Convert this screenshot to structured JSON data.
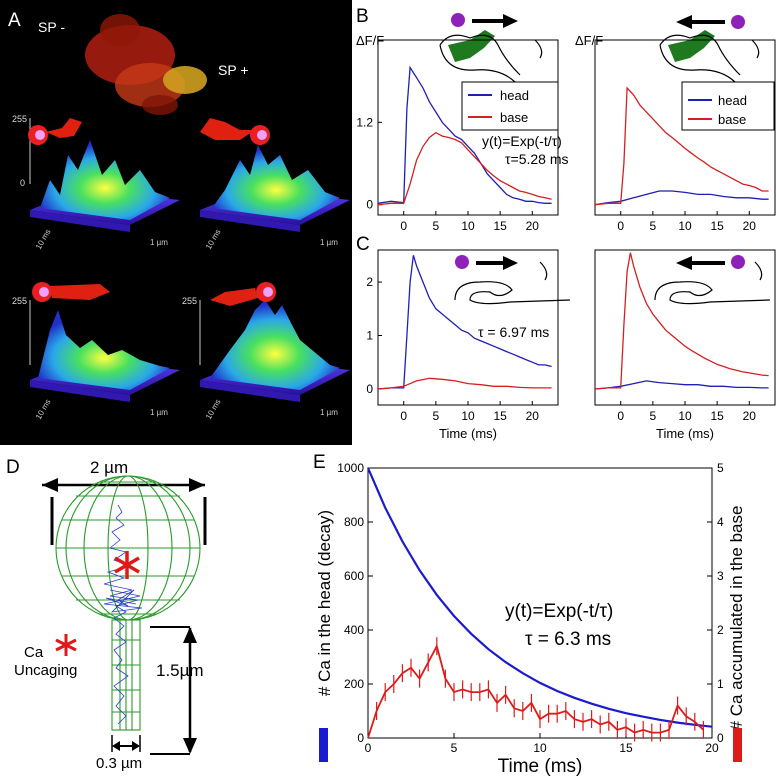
{
  "panels": {
    "A": {
      "label": "A",
      "image_caption_left": "SP -",
      "image_caption_right": "SP +",
      "z_tick_max": "255",
      "z_tick_min": "0",
      "scale_time": "10 ms",
      "scale_space": "1 µm"
    },
    "B": {
      "label": "B",
      "ylabel": "ΔF/F",
      "ylabel_right": "ΔF/F",
      "legend_head": "head",
      "legend_base": "base",
      "fit_equation": "y(t)=Exp(-t/τ)",
      "fit_tau": "τ=5.28 ms",
      "y_ticks": [
        "0",
        "1.2"
      ],
      "x_ticks": [
        "0",
        "5",
        "10",
        "15",
        "20"
      ]
    },
    "C": {
      "label": "C",
      "fit_tau": "τ = 6.97 ms",
      "y_ticks": [
        "0",
        "1",
        "2"
      ],
      "x_ticks": [
        "0",
        "5",
        "10",
        "15",
        "20"
      ],
      "xlabel_left": "Time (ms)",
      "xlabel_right": "Time (ms)"
    },
    "D": {
      "label": "D",
      "head_width": "2 µm",
      "neck_length": "1.5µm",
      "neck_width": "0.3 µm",
      "uncaging_label_1": "Ca",
      "uncaging_label_2": "Uncaging"
    },
    "E": {
      "label": "E",
      "equation": "y(t)=Exp(-t/τ)",
      "tau": "τ = 6.3 ms"
    }
  },
  "chart_data": [
    {
      "id": "B-left",
      "type": "line",
      "xlabel": "",
      "ylabel": "ΔF/F",
      "xlim": [
        -4,
        24
      ],
      "ylim": [
        -0.15,
        2.4
      ],
      "series": [
        {
          "name": "head",
          "color": "#1f1fb4",
          "x": [
            -4,
            -2,
            0,
            0.5,
            1,
            2,
            3,
            4,
            5,
            6,
            7,
            8,
            9,
            10,
            11,
            12,
            13,
            14,
            15,
            16,
            17,
            18,
            19,
            20,
            21,
            22,
            23
          ],
          "y": [
            0.02,
            0.05,
            0.03,
            1.4,
            2.0,
            1.85,
            1.7,
            1.5,
            1.35,
            1.2,
            1.1,
            1.0,
            0.95,
            0.85,
            0.75,
            0.6,
            0.45,
            0.35,
            0.25,
            0.15,
            0.1,
            0.08,
            0.05,
            0.05,
            0.03,
            0.02,
            0.02
          ]
        },
        {
          "name": "base",
          "color": "#d42020",
          "x": [
            -4,
            -2,
            0,
            1,
            2,
            3,
            4,
            5,
            6,
            7,
            8,
            9,
            10,
            11,
            12,
            13,
            14,
            15,
            16,
            17,
            18,
            19,
            20,
            21,
            22,
            23
          ],
          "y": [
            0.0,
            0.02,
            0.02,
            0.3,
            0.65,
            0.85,
            0.98,
            1.05,
            1.0,
            0.98,
            0.95,
            0.9,
            0.8,
            0.7,
            0.6,
            0.5,
            0.42,
            0.35,
            0.3,
            0.25,
            0.2,
            0.18,
            0.15,
            0.12,
            0.1,
            0.08
          ]
        }
      ]
    },
    {
      "id": "B-right",
      "type": "line",
      "xlabel": "",
      "ylabel": "ΔF/F",
      "xlim": [
        -4,
        24
      ],
      "ylim": [
        -0.15,
        2.4
      ],
      "series": [
        {
          "name": "head",
          "color": "#1f1fb4",
          "x": [
            -4,
            -2,
            0,
            2,
            4,
            6,
            8,
            10,
            12,
            14,
            16,
            18,
            20,
            22,
            23
          ],
          "y": [
            0.0,
            0.03,
            0.05,
            0.1,
            0.15,
            0.2,
            0.2,
            0.18,
            0.15,
            0.15,
            0.12,
            0.1,
            0.1,
            0.08,
            0.08
          ]
        },
        {
          "name": "base",
          "color": "#d42020",
          "x": [
            -4,
            -2,
            0,
            0.5,
            1,
            2,
            3,
            4,
            5,
            6,
            7,
            8,
            9,
            10,
            11,
            12,
            13,
            14,
            15,
            16,
            17,
            18,
            19,
            20,
            21,
            22,
            23
          ],
          "y": [
            0.0,
            0.02,
            0.02,
            0.6,
            1.7,
            1.6,
            1.45,
            1.35,
            1.25,
            1.15,
            1.05,
            0.98,
            0.9,
            0.82,
            0.75,
            0.68,
            0.62,
            0.55,
            0.5,
            0.45,
            0.4,
            0.35,
            0.3,
            0.28,
            0.25,
            0.2,
            0.2
          ]
        }
      ]
    },
    {
      "id": "C-left",
      "type": "line",
      "xlabel": "Time (ms)",
      "ylabel": "",
      "xlim": [
        -4,
        24
      ],
      "ylim": [
        -0.3,
        2.6
      ],
      "series": [
        {
          "name": "head",
          "color": "#1f1fb4",
          "x": [
            -4,
            -2,
            0,
            0.5,
            1,
            1.5,
            2,
            3,
            4,
            5,
            6,
            7,
            8,
            9,
            10,
            11,
            12,
            13,
            14,
            15,
            16,
            17,
            18,
            19,
            20,
            21,
            22,
            23
          ],
          "y": [
            0.0,
            0.02,
            0.02,
            1.0,
            2.0,
            2.5,
            2.3,
            2.0,
            1.7,
            1.5,
            1.4,
            1.3,
            1.2,
            1.1,
            1.05,
            0.95,
            0.9,
            0.85,
            0.8,
            0.75,
            0.7,
            0.65,
            0.6,
            0.55,
            0.5,
            0.45,
            0.45,
            0.42
          ]
        },
        {
          "name": "base",
          "color": "#d42020",
          "x": [
            -4,
            -2,
            0,
            2,
            4,
            6,
            8,
            10,
            12,
            14,
            16,
            18,
            20,
            22,
            23
          ],
          "y": [
            0.0,
            0.02,
            0.05,
            0.15,
            0.2,
            0.18,
            0.15,
            0.1,
            0.08,
            0.05,
            0.05,
            0.03,
            0.02,
            0.02,
            0.02
          ]
        }
      ]
    },
    {
      "id": "C-right",
      "type": "line",
      "xlabel": "Time (ms)",
      "ylabel": "",
      "xlim": [
        -4,
        24
      ],
      "ylim": [
        -0.3,
        2.6
      ],
      "series": [
        {
          "name": "head",
          "color": "#1f1fb4",
          "x": [
            -4,
            -2,
            0,
            2,
            4,
            6,
            8,
            10,
            12,
            14,
            16,
            18,
            20,
            22,
            23
          ],
          "y": [
            0.0,
            0.02,
            0.05,
            0.1,
            0.15,
            0.12,
            0.1,
            0.08,
            0.08,
            0.05,
            0.05,
            0.03,
            0.03,
            0.02,
            0.02
          ]
        },
        {
          "name": "base",
          "color": "#d42020",
          "x": [
            -4,
            -2,
            0,
            0.5,
            1,
            1.5,
            2,
            3,
            4,
            5,
            6,
            7,
            8,
            9,
            10,
            11,
            12,
            13,
            14,
            15,
            16,
            17,
            18,
            19,
            20,
            21,
            22,
            23
          ],
          "y": [
            0.0,
            0.02,
            0.02,
            1.2,
            2.2,
            2.55,
            2.3,
            1.9,
            1.6,
            1.4,
            1.25,
            1.1,
            1.0,
            0.9,
            0.8,
            0.72,
            0.65,
            0.58,
            0.52,
            0.46,
            0.42,
            0.38,
            0.35,
            0.32,
            0.3,
            0.28,
            0.26,
            0.25
          ]
        }
      ]
    },
    {
      "id": "E",
      "type": "line",
      "title": "",
      "xlabel": "Time (ms)",
      "ylabel": "# Ca in the head (decay)",
      "ylabel_right": "# Ca accumulated in the base",
      "xlim": [
        0,
        20
      ],
      "ylim": [
        0,
        1000
      ],
      "ylim_right": [
        0,
        5
      ],
      "x_ticks": [
        0,
        5,
        10,
        15,
        20
      ],
      "y_ticks": [
        0,
        200,
        400,
        600,
        800,
        1000
      ],
      "y_ticks_right": [
        0,
        1,
        2,
        3,
        4,
        5
      ],
      "series": [
        {
          "name": "head decay",
          "color": "#1a1ad0",
          "axis": "left",
          "x": [
            0,
            1,
            2,
            3,
            4,
            5,
            6,
            7,
            8,
            9,
            10,
            11,
            12,
            13,
            14,
            15,
            16,
            17,
            18,
            19,
            20
          ],
          "y": [
            1000,
            853,
            728,
            621,
            530,
            452,
            386,
            329,
            281,
            240,
            204,
            174,
            149,
            127,
            108,
            92,
            79,
            67,
            57,
            49,
            42
          ]
        },
        {
          "name": "base accumulated",
          "color": "#dd1b1b",
          "axis": "right",
          "x": [
            0,
            0.5,
            1,
            1.5,
            2,
            2.5,
            3,
            3.5,
            4,
            4.5,
            5,
            5.5,
            6,
            6.5,
            7,
            7.5,
            8,
            8.5,
            9,
            9.5,
            10,
            10.5,
            11,
            11.5,
            12,
            12.5,
            13,
            13.5,
            14,
            14.5,
            15,
            15.5,
            16,
            16.5,
            17,
            17.5,
            18,
            18.5,
            19,
            19.5
          ],
          "y": [
            0,
            0.5,
            0.85,
            1.0,
            1.2,
            1.3,
            1.1,
            1.4,
            1.7,
            1.1,
            0.85,
            0.9,
            0.85,
            0.85,
            0.9,
            0.65,
            0.8,
            0.55,
            0.5,
            0.65,
            0.35,
            0.45,
            0.45,
            0.5,
            0.35,
            0.3,
            0.35,
            0.25,
            0.3,
            0.15,
            0.2,
            0.1,
            0.15,
            0.1,
            0.1,
            0.15,
            0.6,
            0.4,
            0.3,
            0.15
          ]
        }
      ]
    }
  ]
}
